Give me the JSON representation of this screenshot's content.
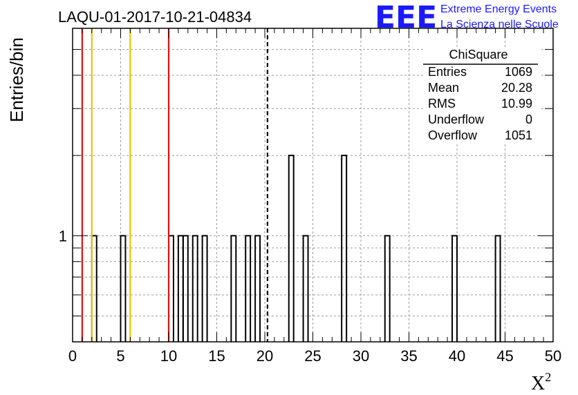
{
  "chart_data": {
    "type": "bar",
    "title": "LAQU-01-2017-10-21-04834",
    "xlabel": "X",
    "xlabel_superscript": "2",
    "ylabel": "Entries/bin",
    "xlim": [
      0,
      50
    ],
    "ylim_log": [
      0.4,
      6
    ],
    "log_y": true,
    "grid": true,
    "x_ticks": [
      "0",
      "5",
      "10",
      "15",
      "20",
      "25",
      "30",
      "35",
      "40",
      "45",
      "50"
    ],
    "y_tick_labels": [
      {
        "value": 1,
        "label": "1"
      }
    ],
    "bin_width": 0.5,
    "bins": [
      {
        "x": 2.0,
        "value": 1
      },
      {
        "x": 5.0,
        "value": 1
      },
      {
        "x": 10.0,
        "value": 1
      },
      {
        "x": 11.0,
        "value": 1
      },
      {
        "x": 11.5,
        "value": 1
      },
      {
        "x": 12.5,
        "value": 1
      },
      {
        "x": 13.5,
        "value": 1
      },
      {
        "x": 16.5,
        "value": 1
      },
      {
        "x": 18.0,
        "value": 1
      },
      {
        "x": 19.0,
        "value": 1
      },
      {
        "x": 22.5,
        "value": 2
      },
      {
        "x": 24.0,
        "value": 1
      },
      {
        "x": 28.0,
        "value": 2
      },
      {
        "x": 32.5,
        "value": 1
      },
      {
        "x": 39.5,
        "value": 1
      },
      {
        "x": 44.0,
        "value": 1
      }
    ],
    "vertical_lines": [
      {
        "x": 1.0,
        "color": "#dd1111",
        "style": "solid"
      },
      {
        "x": 2.0,
        "color": "#f0c000",
        "style": "solid"
      },
      {
        "x": 6.0,
        "color": "#f0c000",
        "style": "solid"
      },
      {
        "x": 10.0,
        "color": "#dd1111",
        "style": "solid"
      },
      {
        "x": 20.28,
        "color": "#000000",
        "style": "dashed"
      }
    ],
    "stats": {
      "name": "ChiSquare",
      "rows": [
        {
          "label": "Entries",
          "value": "1069"
        },
        {
          "label": "Mean",
          "value": "20.28"
        },
        {
          "label": "RMS",
          "value": "10.99"
        },
        {
          "label": "Underflow",
          "value": "0"
        },
        {
          "label": "Overflow",
          "value": "1051"
        }
      ]
    }
  },
  "logo": {
    "mark": "EEE",
    "line1": "Extreme Energy Events",
    "line2": "La Scienza nelle Scuole",
    "color": "#1a1aff"
  }
}
